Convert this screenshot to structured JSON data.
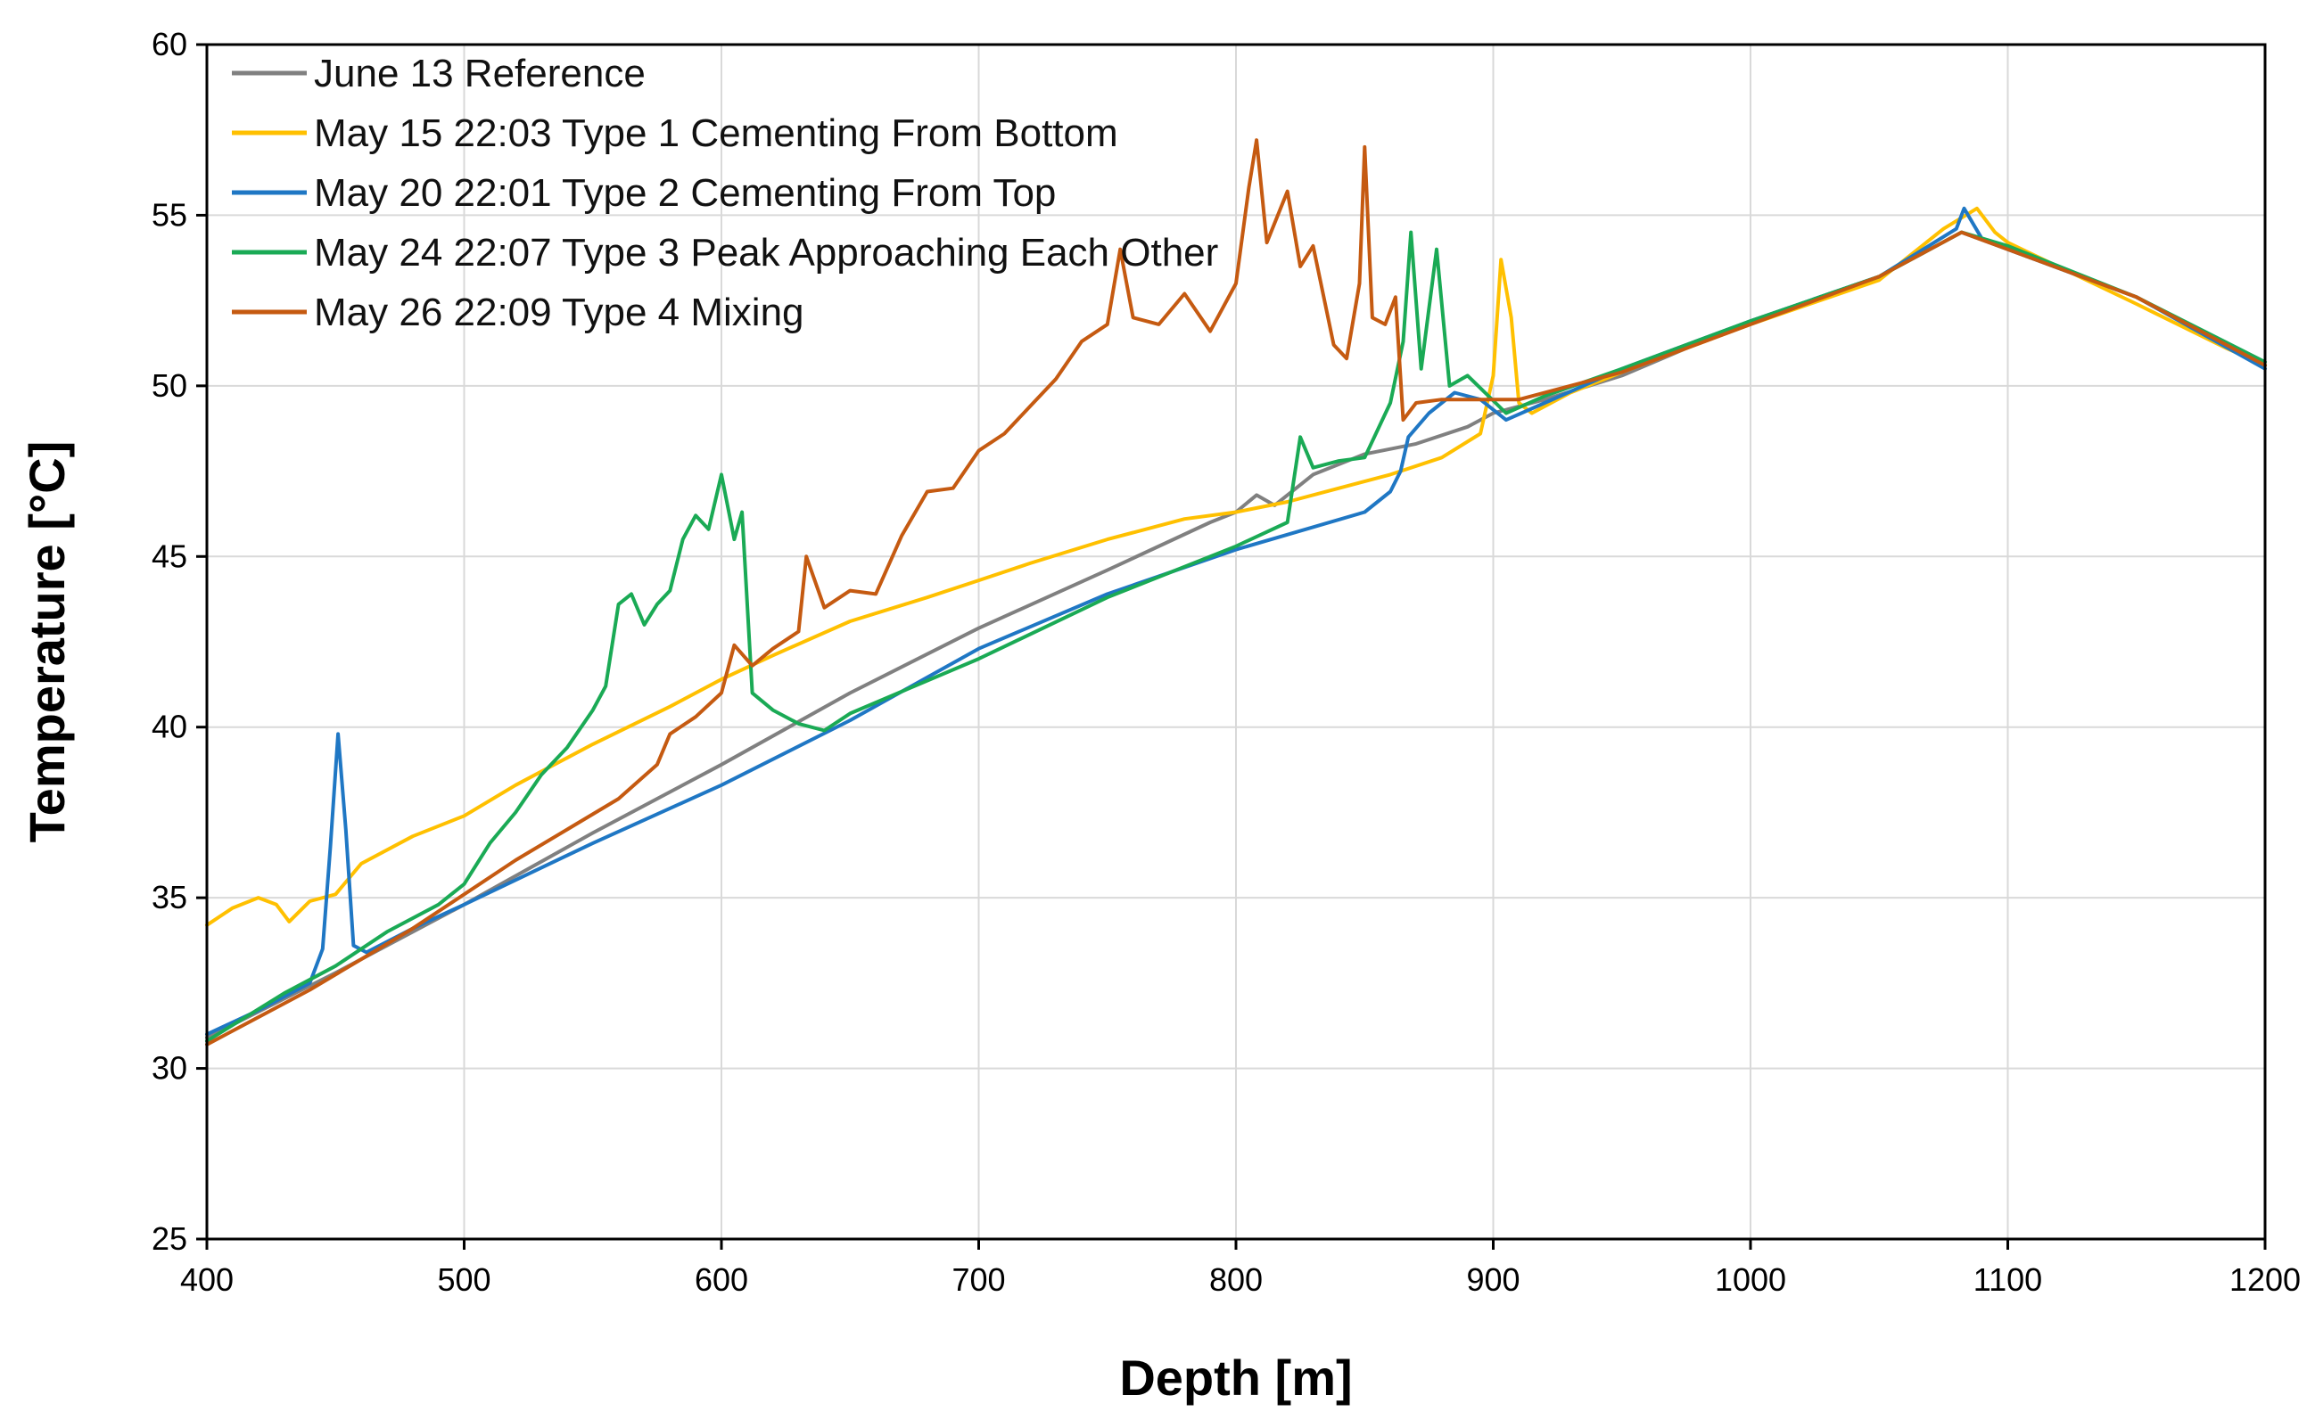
{
  "chart_data": {
    "type": "line",
    "title": "",
    "xlabel": "Depth [m]",
    "ylabel": "Temperature [°C]",
    "xlim": [
      400,
      1200
    ],
    "ylim": [
      25,
      60
    ],
    "xticks": [
      400,
      500,
      600,
      700,
      800,
      900,
      1000,
      1100,
      1200
    ],
    "yticks": [
      25,
      30,
      35,
      40,
      45,
      50,
      55,
      60
    ],
    "grid": true,
    "legend_position": "top-left",
    "series": [
      {
        "name": "June 13 Reference",
        "color": "#808080",
        "points": [
          [
            400,
            30.9
          ],
          [
            450,
            32.8
          ],
          [
            500,
            34.8
          ],
          [
            550,
            36.9
          ],
          [
            600,
            38.9
          ],
          [
            650,
            41.0
          ],
          [
            700,
            42.9
          ],
          [
            750,
            44.6
          ],
          [
            790,
            46.0
          ],
          [
            800,
            46.3
          ],
          [
            808,
            46.8
          ],
          [
            815,
            46.5
          ],
          [
            830,
            47.4
          ],
          [
            850,
            48.0
          ],
          [
            870,
            48.3
          ],
          [
            890,
            48.8
          ],
          [
            900,
            49.2
          ],
          [
            920,
            49.6
          ],
          [
            950,
            50.3
          ],
          [
            1000,
            51.9
          ],
          [
            1050,
            53.2
          ],
          [
            1082,
            54.5
          ],
          [
            1100,
            54.0
          ],
          [
            1150,
            52.6
          ],
          [
            1200,
            50.6
          ]
        ]
      },
      {
        "name": "May 15 22:03 Type 1 Cementing From Bottom",
        "color": "#FFC000",
        "points": [
          [
            400,
            34.2
          ],
          [
            410,
            34.7
          ],
          [
            420,
            35.0
          ],
          [
            427,
            34.8
          ],
          [
            432,
            34.3
          ],
          [
            440,
            34.9
          ],
          [
            450,
            35.1
          ],
          [
            460,
            36.0
          ],
          [
            480,
            36.8
          ],
          [
            500,
            37.4
          ],
          [
            520,
            38.3
          ],
          [
            550,
            39.5
          ],
          [
            580,
            40.6
          ],
          [
            600,
            41.4
          ],
          [
            620,
            42.1
          ],
          [
            650,
            43.1
          ],
          [
            680,
            43.8
          ],
          [
            700,
            44.3
          ],
          [
            720,
            44.8
          ],
          [
            750,
            45.5
          ],
          [
            780,
            46.1
          ],
          [
            800,
            46.3
          ],
          [
            820,
            46.6
          ],
          [
            840,
            47.0
          ],
          [
            860,
            47.4
          ],
          [
            880,
            47.9
          ],
          [
            895,
            48.6
          ],
          [
            900,
            50.3
          ],
          [
            903,
            53.7
          ],
          [
            907,
            52.0
          ],
          [
            910,
            49.5
          ],
          [
            915,
            49.2
          ],
          [
            930,
            49.8
          ],
          [
            950,
            50.4
          ],
          [
            1000,
            51.8
          ],
          [
            1050,
            53.1
          ],
          [
            1075,
            54.6
          ],
          [
            1088,
            55.2
          ],
          [
            1095,
            54.5
          ],
          [
            1100,
            54.2
          ],
          [
            1150,
            52.4
          ],
          [
            1185,
            51.1
          ],
          [
            1200,
            50.6
          ]
        ]
      },
      {
        "name": "May 20 22:01 Type 2 Cementing From Top",
        "color": "#1F77C4",
        "points": [
          [
            400,
            31.0
          ],
          [
            420,
            31.7
          ],
          [
            440,
            32.5
          ],
          [
            445,
            33.5
          ],
          [
            448,
            36.5
          ],
          [
            451,
            39.8
          ],
          [
            454,
            37.0
          ],
          [
            457,
            33.6
          ],
          [
            462,
            33.4
          ],
          [
            480,
            34.1
          ],
          [
            500,
            34.8
          ],
          [
            550,
            36.6
          ],
          [
            600,
            38.3
          ],
          [
            650,
            40.2
          ],
          [
            700,
            42.3
          ],
          [
            750,
            43.9
          ],
          [
            800,
            45.2
          ],
          [
            850,
            46.3
          ],
          [
            860,
            46.9
          ],
          [
            864,
            47.5
          ],
          [
            867,
            48.5
          ],
          [
            875,
            49.2
          ],
          [
            885,
            49.8
          ],
          [
            895,
            49.6
          ],
          [
            905,
            49.0
          ],
          [
            920,
            49.5
          ],
          [
            950,
            50.5
          ],
          [
            1000,
            51.9
          ],
          [
            1050,
            53.2
          ],
          [
            1080,
            54.6
          ],
          [
            1083,
            55.2
          ],
          [
            1090,
            54.3
          ],
          [
            1100,
            54.0
          ],
          [
            1150,
            52.6
          ],
          [
            1200,
            50.5
          ]
        ]
      },
      {
        "name": "May 24 22:07 Type 3 Peak Approaching Each Other",
        "color": "#1AAA55",
        "points": [
          [
            400,
            30.8
          ],
          [
            430,
            32.2
          ],
          [
            450,
            33.0
          ],
          [
            470,
            34.0
          ],
          [
            490,
            34.8
          ],
          [
            500,
            35.4
          ],
          [
            510,
            36.6
          ],
          [
            520,
            37.5
          ],
          [
            530,
            38.6
          ],
          [
            540,
            39.4
          ],
          [
            550,
            40.5
          ],
          [
            555,
            41.2
          ],
          [
            560,
            43.6
          ],
          [
            565,
            43.9
          ],
          [
            570,
            43.0
          ],
          [
            575,
            43.6
          ],
          [
            580,
            44.0
          ],
          [
            585,
            45.5
          ],
          [
            590,
            46.2
          ],
          [
            595,
            45.8
          ],
          [
            600,
            47.4
          ],
          [
            605,
            45.5
          ],
          [
            608,
            46.3
          ],
          [
            612,
            41.0
          ],
          [
            620,
            40.5
          ],
          [
            630,
            40.1
          ],
          [
            640,
            39.9
          ],
          [
            650,
            40.4
          ],
          [
            700,
            42.0
          ],
          [
            750,
            43.8
          ],
          [
            800,
            45.3
          ],
          [
            820,
            46.0
          ],
          [
            825,
            48.5
          ],
          [
            830,
            47.6
          ],
          [
            840,
            47.8
          ],
          [
            850,
            47.9
          ],
          [
            860,
            49.5
          ],
          [
            865,
            51.3
          ],
          [
            868,
            54.5
          ],
          [
            872,
            50.5
          ],
          [
            878,
            54.0
          ],
          [
            883,
            50.0
          ],
          [
            890,
            50.3
          ],
          [
            905,
            49.2
          ],
          [
            920,
            49.7
          ],
          [
            950,
            50.5
          ],
          [
            1000,
            51.9
          ],
          [
            1050,
            53.2
          ],
          [
            1082,
            54.5
          ],
          [
            1100,
            54.1
          ],
          [
            1150,
            52.6
          ],
          [
            1200,
            50.7
          ]
        ]
      },
      {
        "name": "May 26 22:09 Type 4 Mixing",
        "color": "#C55A11",
        "points": [
          [
            400,
            30.7
          ],
          [
            440,
            32.3
          ],
          [
            460,
            33.2
          ],
          [
            480,
            34.1
          ],
          [
            500,
            35.1
          ],
          [
            520,
            36.1
          ],
          [
            540,
            37.0
          ],
          [
            560,
            37.9
          ],
          [
            575,
            38.9
          ],
          [
            580,
            39.8
          ],
          [
            590,
            40.3
          ],
          [
            600,
            41.0
          ],
          [
            605,
            42.4
          ],
          [
            612,
            41.8
          ],
          [
            620,
            42.3
          ],
          [
            630,
            42.8
          ],
          [
            633,
            45.0
          ],
          [
            640,
            43.5
          ],
          [
            650,
            44.0
          ],
          [
            660,
            43.9
          ],
          [
            670,
            45.6
          ],
          [
            680,
            46.9
          ],
          [
            690,
            47.0
          ],
          [
            700,
            48.1
          ],
          [
            710,
            48.6
          ],
          [
            720,
            49.4
          ],
          [
            730,
            50.2
          ],
          [
            740,
            51.3
          ],
          [
            750,
            51.8
          ],
          [
            755,
            54.0
          ],
          [
            760,
            52.0
          ],
          [
            770,
            51.8
          ],
          [
            780,
            52.7
          ],
          [
            790,
            51.6
          ],
          [
            800,
            53.0
          ],
          [
            805,
            55.8
          ],
          [
            808,
            57.2
          ],
          [
            812,
            54.2
          ],
          [
            820,
            55.7
          ],
          [
            825,
            53.5
          ],
          [
            830,
            54.1
          ],
          [
            838,
            51.2
          ],
          [
            843,
            50.8
          ],
          [
            848,
            53.0
          ],
          [
            850,
            57.0
          ],
          [
            853,
            52.0
          ],
          [
            858,
            51.8
          ],
          [
            862,
            52.6
          ],
          [
            865,
            49.0
          ],
          [
            870,
            49.5
          ],
          [
            880,
            49.6
          ],
          [
            895,
            49.6
          ],
          [
            910,
            49.6
          ],
          [
            950,
            50.4
          ],
          [
            1000,
            51.8
          ],
          [
            1050,
            53.2
          ],
          [
            1082,
            54.5
          ],
          [
            1100,
            54.0
          ],
          [
            1150,
            52.6
          ],
          [
            1200,
            50.6
          ]
        ]
      }
    ]
  }
}
